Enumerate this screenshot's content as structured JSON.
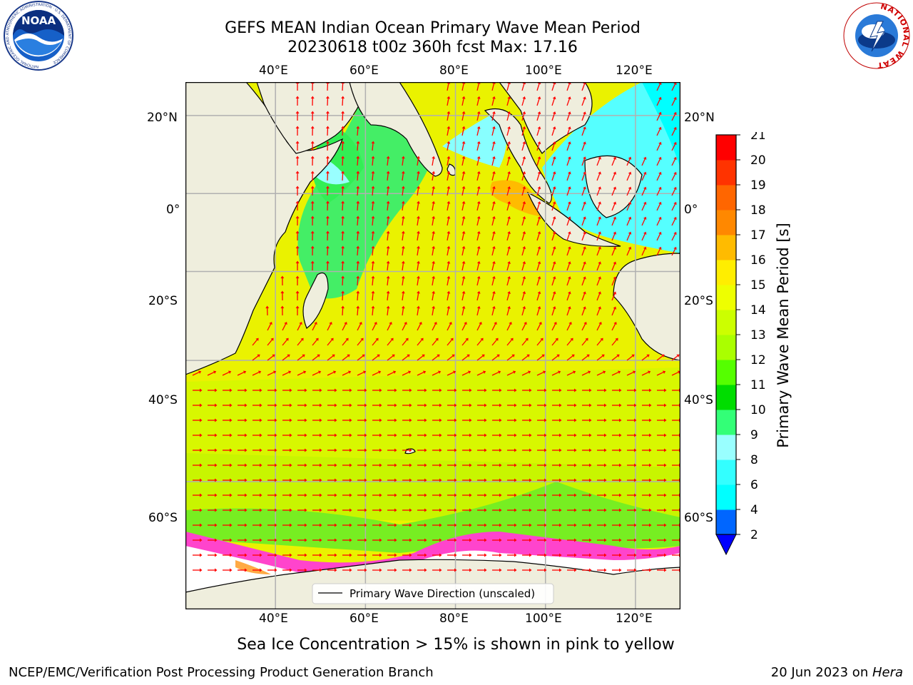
{
  "header": {
    "title_line1": "GEFS MEAN Indian Ocean Primary Wave Mean Period",
    "title_line2": "20230618 t00z 360h fcst   Max: 17.16",
    "left_logo_text": "NOAA",
    "left_logo_ring_text": "NATIONAL OCEANIC AND ATMOSPHERIC ADMINISTRATION · U.S. DEPARTMENT OF COMMERCE",
    "right_logo_ring_text": "NATIONAL WEATHER SERVICE"
  },
  "map": {
    "lon_ticks": [
      "40°E",
      "60°E",
      "80°E",
      "100°E",
      "120°E"
    ],
    "lat_ticks": [
      "20°N",
      "0°",
      "20°S",
      "40°S",
      "60°S"
    ],
    "lon_values": [
      40,
      60,
      80,
      100,
      120
    ],
    "lat_values": [
      20,
      0,
      -20,
      -40,
      -60
    ],
    "extent": {
      "lon_min": 20,
      "lon_max": 130,
      "lat_min": -73,
      "lat_max": 28
    },
    "legend_label": "Primary Wave Direction (unscaled)",
    "colors": {
      "land": "#efeedd",
      "ice": "#ffffff",
      "arrow": "#ff0000",
      "grid": "#b0b0b0"
    }
  },
  "colorbar": {
    "label": "Primary Wave Mean Period [s]",
    "levels": [
      2,
      4,
      6,
      8,
      9,
      10,
      11,
      12,
      13,
      14,
      15,
      16,
      17,
      18,
      19,
      20,
      21
    ],
    "colors": [
      "#0066ff",
      "#00ffff",
      "#33ffff",
      "#99ffff",
      "#33ff77",
      "#00dd00",
      "#55ff00",
      "#aaff00",
      "#ccff00",
      "#eeff00",
      "#ffee00",
      "#ffbb00",
      "#ff8800",
      "#ff6600",
      "#ff3300",
      "#ff0000"
    ],
    "under_color": "#0000ff"
  },
  "footer": {
    "ice_note": "Sea Ice Concentration > 15% is shown in pink to yellow",
    "credit": "NCEP/EMC/Verification Post Processing Product Generation Branch",
    "date_text": "20 Jun 2023 on ",
    "machine": "Hera"
  }
}
